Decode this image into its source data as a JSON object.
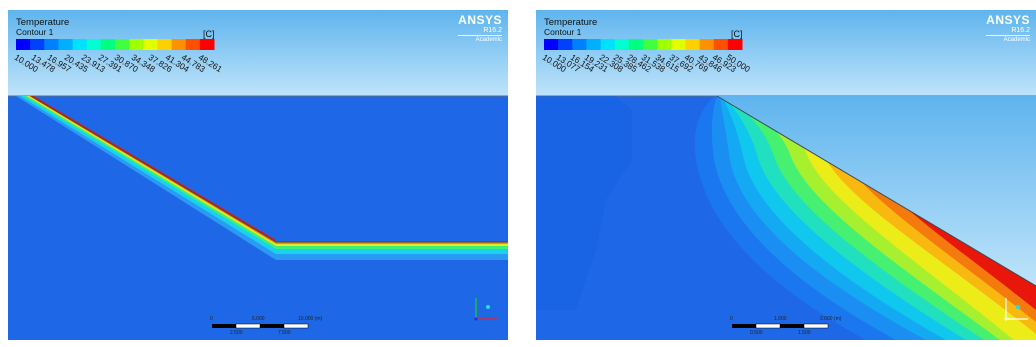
{
  "colors": {
    "sky_top": "#5fb4ee",
    "sky_bottom": "#bfe4fa",
    "cold": "#1e68e8",
    "hot": "#e8160b",
    "boundary": "#5a6e7a"
  },
  "legend_colors": [
    "#0000ff",
    "#0040ff",
    "#0080ff",
    "#00b0ff",
    "#00e0ff",
    "#00ffd0",
    "#00ff80",
    "#40ff40",
    "#a0ff00",
    "#e0ff00",
    "#ffd000",
    "#ff9000",
    "#ff5000",
    "#ff0000"
  ],
  "panels": [
    {
      "title": "Temperature",
      "subtitle": "Contour 1",
      "unit": "[C]",
      "brand": "ANSYS",
      "version": "R16.2",
      "edition": "Academic",
      "ticks": [
        "10.000",
        "13.478",
        "16.957",
        "20.435",
        "23.913",
        "27.391",
        "30.870",
        "34.348",
        "37.826",
        "41.304",
        "44.783",
        "48.261"
      ],
      "scale_bar": {
        "left_label": "0",
        "mid_label": "5.000",
        "right_label": "10.000 (m)",
        "low_left": "2.500",
        "low_right": "7.500"
      },
      "axis_icon": "xyz-triad-icon"
    },
    {
      "title": "Temperature",
      "subtitle": "Contour 1",
      "unit": "[C]",
      "brand": "ANSYS",
      "version": "R16.2",
      "edition": "Academic",
      "ticks": [
        "10.000",
        "13.077",
        "16.154",
        "19.231",
        "22.308",
        "25.385",
        "28.462",
        "31.538",
        "34.615",
        "37.692",
        "40.769",
        "43.846",
        "46.923",
        "50.000"
      ],
      "scale_bar": {
        "left_label": "0",
        "mid_label": "1.000",
        "right_label": "2.000 (m)",
        "low_left": "0.500",
        "low_right": "1.500"
      },
      "axis_icon": "xyz-triad-icon"
    }
  ]
}
